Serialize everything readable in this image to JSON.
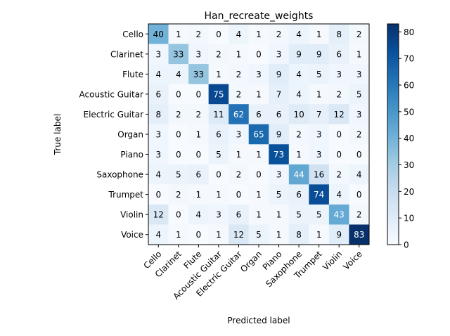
{
  "chart_data": {
    "type": "heatmap",
    "title": "Han_recreate_weights",
    "xlabel": "Predicted label",
    "ylabel": "True label",
    "labels": [
      "Cello",
      "Clarinet",
      "Flute",
      "Acoustic Guitar",
      "Electric Guitar",
      "Organ",
      "Piano",
      "Saxophone",
      "Trumpet",
      "Violin",
      "Voice"
    ],
    "matrix": [
      [
        40,
        1,
        2,
        0,
        4,
        1,
        2,
        4,
        1,
        8,
        2
      ],
      [
        3,
        33,
        3,
        2,
        1,
        0,
        3,
        9,
        9,
        6,
        1
      ],
      [
        4,
        4,
        33,
        1,
        2,
        3,
        9,
        4,
        5,
        3,
        3
      ],
      [
        6,
        0,
        0,
        75,
        2,
        1,
        7,
        4,
        1,
        2,
        5
      ],
      [
        8,
        2,
        2,
        11,
        62,
        6,
        6,
        10,
        7,
        12,
        3
      ],
      [
        3,
        0,
        1,
        6,
        3,
        65,
        9,
        2,
        3,
        0,
        2
      ],
      [
        3,
        0,
        0,
        5,
        1,
        1,
        73,
        1,
        3,
        0,
        0
      ],
      [
        4,
        5,
        6,
        0,
        2,
        0,
        3,
        44,
        16,
        2,
        4
      ],
      [
        0,
        2,
        1,
        1,
        0,
        1,
        5,
        6,
        74,
        4,
        0
      ],
      [
        12,
        0,
        4,
        3,
        6,
        1,
        1,
        5,
        5,
        43,
        2
      ],
      [
        4,
        1,
        0,
        1,
        12,
        5,
        1,
        8,
        1,
        9,
        83
      ]
    ],
    "colormap": "Blues",
    "colorbar": {
      "range": [
        0,
        83
      ],
      "ticks": [
        0,
        10,
        20,
        30,
        40,
        50,
        60,
        70,
        80
      ]
    },
    "text_threshold": 41.5
  }
}
